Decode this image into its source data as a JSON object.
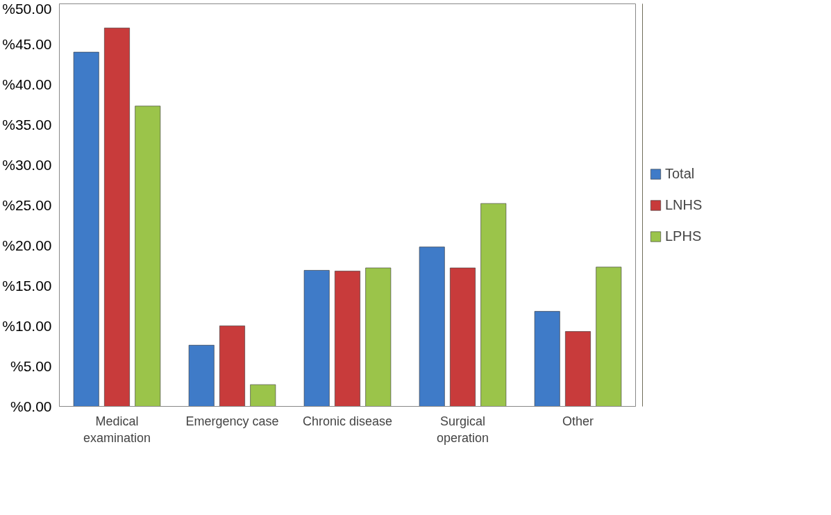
{
  "chart_data": {
    "type": "bar",
    "categories": [
      "Medical\nexamination",
      "Emergency case",
      "Chronic disease",
      "Surgical\noperation",
      "Other"
    ],
    "series": [
      {
        "name": "Total",
        "color": "#3f7bc8",
        "values": [
          44.0,
          7.6,
          16.9,
          19.8,
          11.8
        ]
      },
      {
        "name": "LNHS",
        "color": "#c83b3b",
        "values": [
          47.0,
          10.0,
          16.8,
          17.2,
          9.3
        ]
      },
      {
        "name": "LPHS",
        "color": "#9bc44a",
        "values": [
          37.3,
          2.7,
          17.2,
          25.2,
          17.3
        ]
      }
    ],
    "ylim": [
      0,
      50
    ],
    "yticks": [
      {
        "value": 0,
        "label": "%0.00"
      },
      {
        "value": 5,
        "label": "%5.00"
      },
      {
        "value": 10,
        "label": "%10.00"
      },
      {
        "value": 15,
        "label": "%15.00"
      },
      {
        "value": 20,
        "label": "%20.00"
      },
      {
        "value": 25,
        "label": "%25.00"
      },
      {
        "value": 30,
        "label": "%30.00"
      },
      {
        "value": 35,
        "label": "%35.00"
      },
      {
        "value": 40,
        "label": "%40.00"
      },
      {
        "value": 45,
        "label": "%45.00"
      },
      {
        "value": 50,
        "label": "%50.00"
      }
    ],
    "grid": false,
    "legend": "right"
  }
}
